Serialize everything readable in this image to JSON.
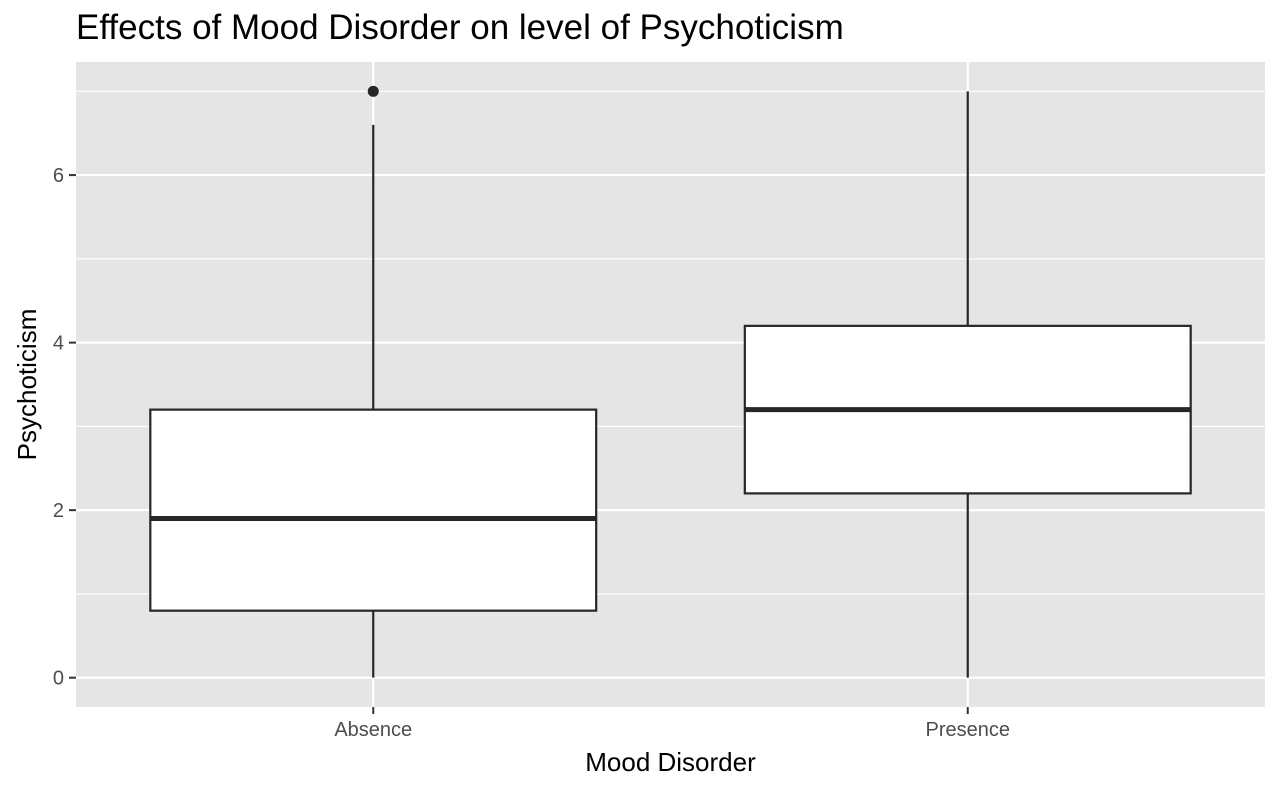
{
  "chart_data": {
    "type": "boxplot",
    "title": "Effects of Mood Disorder on level of Psychoticism",
    "xlabel": "Mood Disorder",
    "ylabel": "Psychoticism",
    "categories": [
      "Absence",
      "Presence"
    ],
    "ylim": [
      -0.35,
      7.35
    ],
    "yticks": [
      0,
      2,
      4,
      6
    ],
    "grid": true,
    "boxes": [
      {
        "category": "Absence",
        "whisker_low": 0,
        "q1": 0.8,
        "median": 1.9,
        "q3": 3.2,
        "whisker_high": 6.6,
        "outliers": [
          7
        ]
      },
      {
        "category": "Presence",
        "whisker_low": 0,
        "q1": 2.2,
        "median": 3.2,
        "q3": 4.2,
        "whisker_high": 7,
        "outliers": []
      }
    ],
    "colors": {
      "panel_bg": "#e5e5e5",
      "grid": "#ffffff",
      "box_fill": "#ffffff",
      "box_stroke": "#262626",
      "tick_text": "#4d4d4d",
      "tick_mark": "#333333"
    }
  }
}
